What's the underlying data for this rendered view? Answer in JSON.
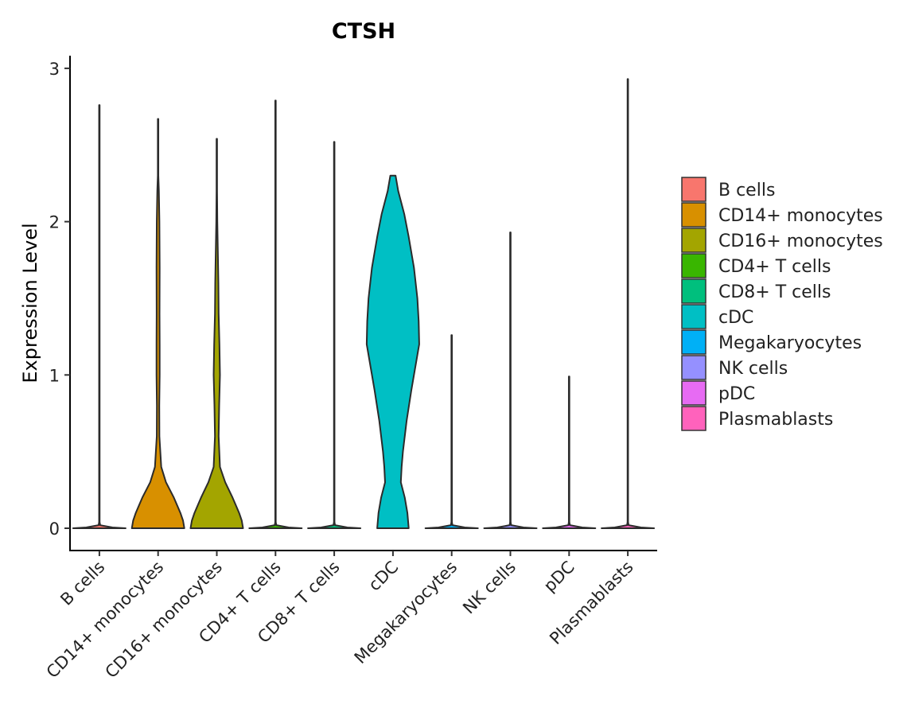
{
  "chart_data": {
    "type": "violin",
    "title": "CTSH",
    "xlabel": "",
    "ylabel": "Expression Level",
    "ylim": [
      -0.14,
      3.08
    ],
    "yticks": [
      0,
      1,
      2,
      3
    ],
    "grid": false,
    "legend_position": "right",
    "categories": [
      "B cells",
      "CD14+ monocytes",
      "CD16+ monocytes",
      "CD4+ T cells",
      "CD8+ T cells",
      "cDC",
      "Megakaryocytes",
      "NK cells",
      "pDC",
      "Plasmablasts"
    ],
    "colors": [
      "#F8766D",
      "#D89000",
      "#A3A500",
      "#39B600",
      "#00BF7D",
      "#00BFC4",
      "#00B0F6",
      "#9590FF",
      "#E76BF3",
      "#FF62BC"
    ],
    "max_values": [
      2.76,
      2.67,
      2.54,
      2.79,
      2.52,
      2.3,
      1.26,
      1.93,
      0.99,
      2.93
    ],
    "density_profiles": [
      [
        [
          0,
          1.0
        ],
        [
          0.005,
          0.5
        ],
        [
          0.02,
          0.03
        ],
        [
          0.04,
          0.01
        ],
        [
          2.76,
          0.01
        ]
      ],
      [
        [
          0,
          1.0
        ],
        [
          0.05,
          0.95
        ],
        [
          0.1,
          0.85
        ],
        [
          0.2,
          0.6
        ],
        [
          0.3,
          0.3
        ],
        [
          0.4,
          0.12
        ],
        [
          0.6,
          0.05
        ],
        [
          0.8,
          0.045
        ],
        [
          1.0,
          0.06
        ],
        [
          1.2,
          0.06
        ],
        [
          1.4,
          0.055
        ],
        [
          1.7,
          0.06
        ],
        [
          2.0,
          0.05
        ],
        [
          2.2,
          0.03
        ],
        [
          2.3,
          0.01
        ],
        [
          2.67,
          0.01
        ]
      ],
      [
        [
          0,
          1.0
        ],
        [
          0.05,
          0.95
        ],
        [
          0.1,
          0.85
        ],
        [
          0.2,
          0.6
        ],
        [
          0.3,
          0.32
        ],
        [
          0.4,
          0.12
        ],
        [
          0.6,
          0.07
        ],
        [
          0.8,
          0.09
        ],
        [
          1.0,
          0.12
        ],
        [
          1.2,
          0.1
        ],
        [
          1.4,
          0.07
        ],
        [
          1.6,
          0.06
        ],
        [
          1.8,
          0.04
        ],
        [
          2.0,
          0.02
        ],
        [
          2.2,
          0.01
        ],
        [
          2.54,
          0.01
        ]
      ],
      [
        [
          0,
          1.0
        ],
        [
          0.005,
          0.5
        ],
        [
          0.02,
          0.03
        ],
        [
          0.04,
          0.01
        ],
        [
          2.79,
          0.01
        ]
      ],
      [
        [
          0,
          1.0
        ],
        [
          0.005,
          0.5
        ],
        [
          0.02,
          0.03
        ],
        [
          0.04,
          0.01
        ],
        [
          2.52,
          0.01
        ]
      ],
      [
        [
          0,
          0.6
        ],
        [
          0.1,
          0.55
        ],
        [
          0.2,
          0.45
        ],
        [
          0.3,
          0.3
        ],
        [
          0.4,
          0.33
        ],
        [
          0.5,
          0.38
        ],
        [
          0.7,
          0.52
        ],
        [
          0.9,
          0.7
        ],
        [
          1.1,
          0.9
        ],
        [
          1.2,
          1.0
        ],
        [
          1.35,
          0.98
        ],
        [
          1.5,
          0.93
        ],
        [
          1.7,
          0.8
        ],
        [
          1.8,
          0.7
        ],
        [
          1.9,
          0.6
        ],
        [
          2.05,
          0.43
        ],
        [
          2.2,
          0.2
        ],
        [
          2.3,
          0.1
        ]
      ],
      [
        [
          0,
          1.0
        ],
        [
          0.005,
          0.5
        ],
        [
          0.02,
          0.03
        ],
        [
          0.04,
          0.01
        ],
        [
          1.26,
          0.01
        ]
      ],
      [
        [
          0,
          1.0
        ],
        [
          0.005,
          0.5
        ],
        [
          0.02,
          0.03
        ],
        [
          0.04,
          0.01
        ],
        [
          1.93,
          0.01
        ]
      ],
      [
        [
          0,
          1.0
        ],
        [
          0.005,
          0.5
        ],
        [
          0.02,
          0.03
        ],
        [
          0.04,
          0.01
        ],
        [
          0.99,
          0.01
        ]
      ],
      [
        [
          0,
          1.0
        ],
        [
          0.005,
          0.5
        ],
        [
          0.02,
          0.03
        ],
        [
          0.04,
          0.01
        ],
        [
          2.93,
          0.01
        ]
      ]
    ]
  }
}
